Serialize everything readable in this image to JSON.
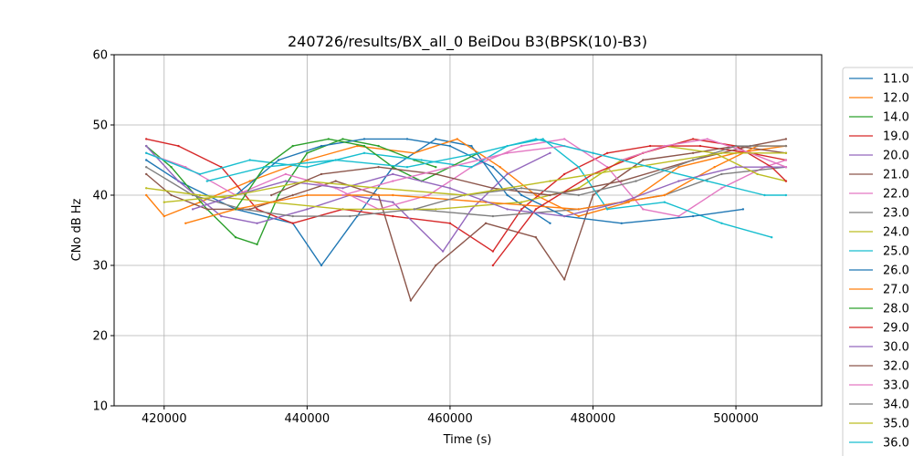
{
  "chart_data": {
    "type": "line",
    "title": "240726/results/BX_all_0 BeiDou B3(BPSK(10)-B3)",
    "xlabel": "Time (s)",
    "ylabel": "CNo dB Hz",
    "xlim": [
      413000,
      512000
    ],
    "ylim": [
      10,
      60
    ],
    "x_ticks": [
      420000,
      440000,
      460000,
      480000,
      500000
    ],
    "x_tick_labels": [
      "420000",
      "440000",
      "460000",
      "480000",
      "500000"
    ],
    "y_ticks": [
      10,
      20,
      30,
      40,
      50,
      60
    ],
    "y_tick_labels": [
      "10",
      "20",
      "30",
      "40",
      "50",
      "60"
    ],
    "grid": true,
    "legend_position": "right",
    "series": [
      {
        "name": "11.0",
        "color": "#1f77b4",
        "segments": [
          [
            [
              417500,
              45
            ],
            [
              422000,
              42
            ],
            [
              430000,
              38
            ],
            [
              438000,
              36
            ],
            [
              442000,
              30
            ],
            [
              447000,
              37
            ],
            [
              452000,
              44
            ],
            [
              458000,
              48
            ],
            [
              463000,
              47
            ],
            [
              468000,
              40
            ],
            [
              474000,
              36
            ]
          ]
        ]
      },
      {
        "name": "12.0",
        "color": "#ff7f0e",
        "segments": [
          [
            [
              417500,
              40
            ],
            [
              420000,
              37
            ],
            [
              425000,
              39
            ],
            [
              432000,
              42
            ],
            [
              440000,
              45
            ],
            [
              447000,
              47
            ],
            [
              455000,
              46
            ],
            [
              461000,
              48
            ],
            [
              467000,
              44
            ],
            [
              472000,
              40
            ],
            [
              478000,
              37
            ],
            [
              485000,
              39
            ],
            [
              492000,
              44
            ],
            [
              500000,
              46
            ],
            [
              507000,
              47
            ]
          ]
        ]
      },
      {
        "name": "14.0",
        "color": "#2ca02c",
        "segments": [
          [
            [
              417500,
              47
            ],
            [
              421000,
              44
            ],
            [
              426000,
              38
            ],
            [
              430000,
              34
            ],
            [
              433000,
              33
            ],
            [
              436000,
              40
            ],
            [
              440000,
              46
            ],
            [
              445000,
              48
            ],
            [
              450000,
              47
            ],
            [
              455000,
              45
            ],
            [
              458000,
              44
            ]
          ]
        ]
      },
      {
        "name": "19.0",
        "color": "#d62728",
        "segments": [
          [
            [
              417500,
              48
            ],
            [
              422000,
              47
            ],
            [
              428000,
              44
            ],
            [
              433000,
              38
            ],
            [
              438000,
              36
            ],
            [
              445000,
              38
            ],
            [
              452000,
              37
            ],
            [
              460000,
              36
            ],
            [
              466000,
              32
            ],
            [
              470000,
              38
            ],
            [
              476000,
              43
            ],
            [
              482000,
              46
            ],
            [
              488000,
              47
            ],
            [
              495000,
              47
            ],
            [
              502000,
              46
            ],
            [
              507000,
              45
            ]
          ]
        ]
      },
      {
        "name": "20.0",
        "color": "#9467bd",
        "segments": [
          [
            [
              417500,
              47
            ],
            [
              422000,
              42
            ],
            [
              428000,
              37
            ],
            [
              433000,
              36
            ],
            [
              440000,
              38
            ],
            [
              446000,
              40
            ],
            [
              452000,
              39
            ],
            [
              459000,
              32
            ],
            [
              463000,
              38
            ],
            [
              468000,
              43
            ],
            [
              474000,
              46
            ]
          ]
        ]
      },
      {
        "name": "21.0",
        "color": "#8c564b",
        "segments": [
          [
            [
              417500,
              43
            ],
            [
              421000,
              40
            ],
            [
              426000,
              38
            ],
            [
              432000,
              38
            ],
            [
              438000,
              40
            ],
            [
              444000,
              42
            ],
            [
              450000,
              40
            ],
            [
              454500,
              25
            ],
            [
              458000,
              30
            ],
            [
              465000,
              36
            ],
            [
              472000,
              34
            ],
            [
              476000,
              28
            ],
            [
              480000,
              40
            ],
            [
              487000,
              45
            ],
            [
              494000,
              46
            ],
            [
              500000,
              47
            ],
            [
              507000,
              46
            ]
          ]
        ]
      },
      {
        "name": "22.0",
        "color": "#e377c2",
        "segments": [
          [
            [
              417500,
              46
            ],
            [
              423000,
              44
            ],
            [
              430000,
              40
            ],
            [
              437000,
              43
            ],
            [
              444000,
              41
            ],
            [
              450000,
              38
            ],
            [
              457000,
              40
            ],
            [
              463000,
              44
            ],
            [
              470000,
              47
            ],
            [
              476000,
              48
            ],
            [
              482000,
              44
            ],
            [
              487000,
              38
            ],
            [
              492000,
              37
            ],
            [
              498000,
              41
            ],
            [
              504000,
              44
            ],
            [
              507000,
              45
            ]
          ]
        ]
      },
      {
        "name": "23.0",
        "color": "#7f7f7f",
        "segments": [
          [
            [
              417500,
              44
            ],
            [
              424000,
              40
            ],
            [
              431000,
              38
            ],
            [
              438000,
              37
            ],
            [
              446000,
              37
            ],
            [
              455000,
              38
            ],
            [
              466000,
              37
            ],
            [
              478000,
              38
            ],
            [
              490000,
              40
            ],
            [
              498000,
              43
            ],
            [
              507000,
              44
            ]
          ]
        ]
      },
      {
        "name": "24.0",
        "color": "#bcbd22",
        "segments": [
          [
            [
              417500,
              41
            ],
            [
              425000,
              40
            ],
            [
              435000,
              39
            ],
            [
              445000,
              38
            ],
            [
              458000,
              38
            ],
            [
              470000,
              39
            ],
            [
              478000,
              41
            ],
            [
              484000,
              45
            ],
            [
              490000,
              47
            ],
            [
              497000,
              46
            ],
            [
              503000,
              43
            ],
            [
              507000,
              42
            ]
          ]
        ]
      },
      {
        "name": "25.0",
        "color": "#17becf",
        "segments": [
          [
            [
              417500,
              46
            ],
            [
              425000,
              43
            ],
            [
              432000,
              45
            ],
            [
              440000,
              44
            ],
            [
              448000,
              46
            ],
            [
              456000,
              45
            ],
            [
              463000,
              44
            ],
            [
              468000,
              47
            ],
            [
              473000,
              48
            ],
            [
              478000,
              44
            ],
            [
              482000,
              38
            ],
            [
              490000,
              39
            ],
            [
              498000,
              36
            ],
            [
              505000,
              34
            ]
          ]
        ]
      },
      {
        "name": "26.0",
        "color": "#1f77b4",
        "segments": [
          [
            [
              430000,
              40
            ],
            [
              436000,
              45
            ],
            [
              442000,
              47
            ],
            [
              448000,
              48
            ],
            [
              454000,
              48
            ],
            [
              460000,
              47
            ],
            [
              466000,
              44
            ],
            [
              470000,
              40
            ],
            [
              476000,
              37
            ],
            [
              484000,
              36
            ],
            [
              494000,
              37
            ],
            [
              501000,
              38
            ]
          ]
        ]
      },
      {
        "name": "27.0",
        "color": "#ff7f0e",
        "segments": [
          [
            [
              423000,
              36
            ],
            [
              430000,
              38
            ],
            [
              440000,
              40
            ],
            [
              452000,
              40
            ],
            [
              465000,
              39
            ],
            [
              478000,
              38
            ],
            [
              490000,
              40
            ],
            [
              497000,
              44
            ],
            [
              503000,
              47
            ],
            [
              507000,
              47
            ]
          ]
        ]
      },
      {
        "name": "28.0",
        "color": "#2ca02c",
        "segments": [
          [
            [
              430000,
              38
            ],
            [
              434000,
              44
            ],
            [
              438000,
              47
            ],
            [
              443000,
              48
            ],
            [
              448000,
              47
            ],
            [
              452000,
              44
            ],
            [
              456000,
              42
            ],
            [
              460000,
              44
            ],
            [
              464000,
              46
            ]
          ]
        ]
      },
      {
        "name": "29.0",
        "color": "#d62728",
        "segments": [
          [
            [
              466000,
              30
            ],
            [
              472000,
              38
            ],
            [
              480000,
              43
            ],
            [
              487000,
              46
            ],
            [
              494000,
              48
            ],
            [
              500000,
              47
            ],
            [
              505000,
              44
            ],
            [
              507000,
              42
            ]
          ]
        ]
      },
      {
        "name": "30.0",
        "color": "#9467bd",
        "segments": [
          [
            [
              424000,
              38
            ],
            [
              430000,
              40
            ],
            [
              437000,
              42
            ],
            [
              445000,
              41
            ],
            [
              452000,
              43
            ],
            [
              460000,
              41
            ],
            [
              468000,
              38
            ],
            [
              476000,
              37
            ],
            [
              484000,
              39
            ],
            [
              492000,
              42
            ],
            [
              500000,
              44
            ],
            [
              507000,
              44
            ]
          ]
        ]
      },
      {
        "name": "32.0",
        "color": "#8c564b",
        "segments": [
          [
            [
              435000,
              40
            ],
            [
              442000,
              43
            ],
            [
              450000,
              44
            ],
            [
              458000,
              43
            ],
            [
              466000,
              41
            ],
            [
              474000,
              40
            ],
            [
              484000,
              42
            ],
            [
              494000,
              45
            ],
            [
              502000,
              47
            ],
            [
              507000,
              48
            ]
          ]
        ]
      },
      {
        "name": "33.0",
        "color": "#e377c2",
        "segments": [
          [
            [
              445000,
              40
            ],
            [
              452000,
              42
            ],
            [
              460000,
              44
            ],
            [
              468000,
              46
            ],
            [
              476000,
              47
            ],
            [
              484000,
              45
            ],
            [
              490000,
              47
            ],
            [
              496000,
              48
            ],
            [
              502000,
              46
            ],
            [
              507000,
              44
            ]
          ]
        ]
      },
      {
        "name": "34.0",
        "color": "#7f7f7f",
        "segments": [
          [
            [
              455000,
              38
            ],
            [
              462000,
              40
            ],
            [
              470000,
              41
            ],
            [
              478000,
              40
            ],
            [
              486000,
              42
            ],
            [
              494000,
              45
            ],
            [
              500000,
              47
            ],
            [
              507000,
              47
            ]
          ]
        ]
      },
      {
        "name": "35.0",
        "color": "#bcbd22",
        "segments": [
          [
            [
              420000,
              39
            ],
            [
              430000,
              40
            ],
            [
              440000,
              42
            ],
            [
              450000,
              41
            ],
            [
              462000,
              40
            ],
            [
              474000,
              42
            ],
            [
              486000,
              44
            ],
            [
              498000,
              46
            ],
            [
              507000,
              46
            ]
          ]
        ]
      },
      {
        "name": "36.0",
        "color": "#17becf",
        "segments": [
          [
            [
              426000,
              42
            ],
            [
              434000,
              44
            ],
            [
              444000,
              45
            ],
            [
              454000,
              44
            ],
            [
              464000,
              46
            ],
            [
              472000,
              48
            ],
            [
              480000,
              46
            ],
            [
              488000,
              44
            ],
            [
              496000,
              42
            ],
            [
              504000,
              40
            ],
            [
              507000,
              40
            ]
          ]
        ]
      }
    ]
  }
}
